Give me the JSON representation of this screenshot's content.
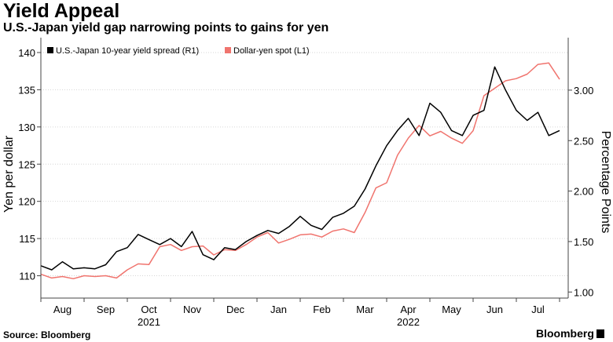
{
  "title": "Yield Appeal",
  "subtitle": "U.S.-Japan yield gap narrowing points to gains for yen",
  "source": "Source: Bloomberg",
  "brand": "Bloomberg",
  "chart_data": {
    "type": "line",
    "title": "Yield Appeal",
    "subtitle": "U.S.-Japan yield gap narrowing points to gains for yen",
    "left_axis": {
      "label": "Yen per dollar",
      "range": [
        107,
        142
      ],
      "ticks": [
        110,
        115,
        120,
        125,
        130,
        135,
        140
      ]
    },
    "right_axis": {
      "label": "Percentage Points",
      "range": [
        0.94,
        3.52
      ],
      "ticks": [
        "1.00",
        "1.50",
        "2.00",
        "2.50",
        "3.00"
      ]
    },
    "x_axis": {
      "range": [
        0,
        12.2
      ],
      "months": [
        {
          "label": "Aug",
          "pos": 0.5
        },
        {
          "label": "Sep",
          "pos": 1.5
        },
        {
          "label": "Oct",
          "pos": 2.5
        },
        {
          "label": "Nov",
          "pos": 3.5
        },
        {
          "label": "Dec",
          "pos": 4.5
        },
        {
          "label": "Jan",
          "pos": 5.5
        },
        {
          "label": "Feb",
          "pos": 6.5
        },
        {
          "label": "Mar",
          "pos": 7.5
        },
        {
          "label": "Apr",
          "pos": 8.5
        },
        {
          "label": "May",
          "pos": 9.5
        },
        {
          "label": "Jun",
          "pos": 10.5
        },
        {
          "label": "Jul",
          "pos": 11.5
        }
      ],
      "years": [
        {
          "label": "2021",
          "pos": 2.5
        },
        {
          "label": "2022",
          "pos": 8.5
        }
      ]
    },
    "legend": {
      "position": "top-left"
    },
    "grid": true,
    "series": [
      {
        "name": "U.S.-Japan 10-year yield spread (R1)",
        "axis": "right",
        "color": "#000000",
        "x": [
          0,
          0.25,
          0.5,
          0.75,
          1.0,
          1.25,
          1.5,
          1.75,
          2.0,
          2.25,
          2.5,
          2.75,
          3.0,
          3.25,
          3.5,
          3.75,
          4.0,
          4.25,
          4.5,
          4.75,
          5.0,
          5.25,
          5.5,
          5.75,
          6.0,
          6.25,
          6.5,
          6.75,
          7.0,
          7.25,
          7.5,
          7.75,
          8.0,
          8.25,
          8.5,
          8.75,
          9.0,
          9.25,
          9.5,
          9.75,
          10.0,
          10.25,
          10.5,
          10.75,
          11.0,
          11.25,
          11.5,
          11.75,
          12.0
        ],
        "values": [
          1.26,
          1.22,
          1.3,
          1.23,
          1.24,
          1.23,
          1.27,
          1.4,
          1.44,
          1.57,
          1.52,
          1.47,
          1.53,
          1.45,
          1.6,
          1.37,
          1.32,
          1.44,
          1.42,
          1.5,
          1.56,
          1.61,
          1.58,
          1.65,
          1.75,
          1.66,
          1.62,
          1.74,
          1.78,
          1.85,
          2.02,
          2.25,
          2.45,
          2.6,
          2.72,
          2.55,
          2.87,
          2.78,
          2.6,
          2.55,
          2.75,
          2.8,
          3.23,
          3.0,
          2.8,
          2.7,
          2.78,
          2.55,
          2.6
        ]
      },
      {
        "name": "Dollar-yen spot (L1)",
        "axis": "left",
        "color": "#f0746e",
        "x": [
          0,
          0.25,
          0.5,
          0.75,
          1.0,
          1.25,
          1.5,
          1.75,
          2.0,
          2.25,
          2.5,
          2.75,
          3.0,
          3.25,
          3.5,
          3.75,
          4.0,
          4.25,
          4.5,
          4.75,
          5.0,
          5.25,
          5.5,
          5.75,
          6.0,
          6.25,
          6.5,
          6.75,
          7.0,
          7.25,
          7.5,
          7.75,
          8.0,
          8.25,
          8.5,
          8.75,
          9.0,
          9.25,
          9.5,
          9.75,
          10.0,
          10.25,
          10.5,
          10.75,
          11.0,
          11.25,
          11.5,
          11.75,
          12.0
        ],
        "values": [
          110.2,
          109.7,
          109.9,
          109.6,
          110.0,
          109.9,
          110.0,
          109.7,
          110.8,
          111.6,
          111.5,
          113.9,
          114.2,
          113.4,
          113.9,
          114.0,
          112.8,
          113.5,
          113.4,
          114.2,
          115.2,
          115.8,
          114.4,
          114.9,
          115.5,
          115.6,
          115.2,
          116.0,
          116.3,
          115.8,
          118.5,
          121.8,
          122.5,
          126.2,
          128.5,
          130.2,
          128.8,
          129.4,
          128.5,
          127.8,
          129.5,
          134.2,
          135.2,
          136.2,
          136.5,
          137.1,
          138.4,
          138.6,
          136.4
        ]
      }
    ]
  }
}
